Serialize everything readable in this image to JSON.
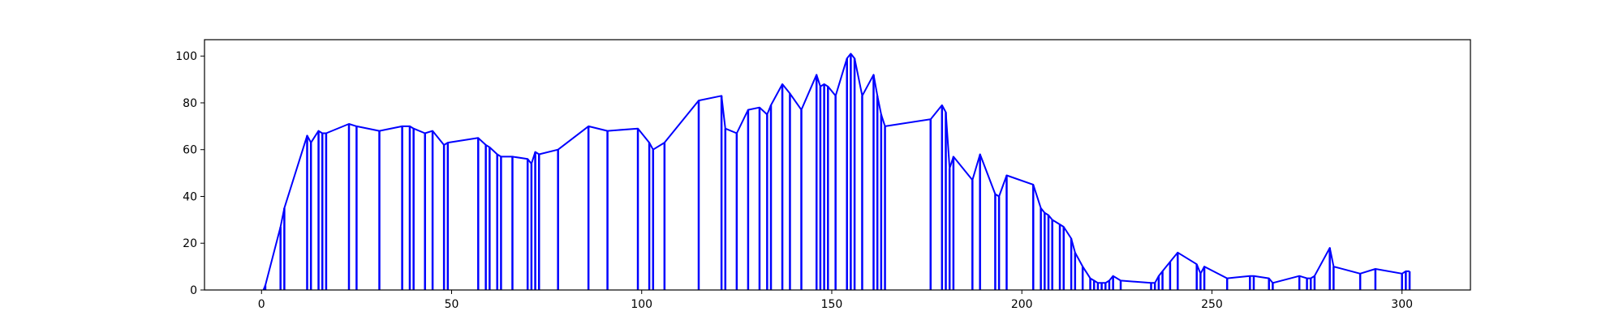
{
  "colors": {
    "series": "#0000ff",
    "axis": "#000000",
    "background": "#ffffff"
  },
  "chart_data": {
    "type": "line",
    "title": "",
    "xlabel": "",
    "ylabel": "",
    "xlim": [
      -15,
      318
    ],
    "ylim": [
      0,
      107
    ],
    "grid": false,
    "legend": "none",
    "xticks": [
      0,
      50,
      100,
      150,
      200,
      250,
      300
    ],
    "yticks": [
      0,
      20,
      40,
      60,
      80,
      100
    ],
    "x": [
      0.5,
      1,
      5,
      6,
      12,
      13,
      15,
      16,
      17,
      23,
      25,
      31,
      37,
      39,
      40,
      43,
      45,
      48,
      49,
      57,
      59,
      60,
      62,
      63,
      66,
      70,
      71,
      72,
      73,
      78,
      86,
      91,
      99,
      102,
      103,
      106,
      115,
      121,
      122,
      125,
      128,
      131,
      133,
      134,
      137,
      139,
      142,
      146,
      147,
      148,
      149,
      151,
      154,
      155,
      156,
      158,
      161,
      162,
      163,
      164,
      176,
      179,
      180,
      181,
      182,
      187,
      189,
      193,
      194,
      196,
      203,
      205,
      206,
      207,
      208,
      210,
      211,
      213,
      214,
      216,
      218,
      219,
      220,
      221,
      222,
      223,
      224,
      226,
      234,
      235,
      236,
      237,
      239,
      241,
      246,
      247,
      248,
      254,
      260,
      261,
      265,
      266,
      273,
      275,
      276,
      277,
      281,
      282,
      289,
      293,
      300,
      301,
      302
    ],
    "y": [
      0,
      2,
      27,
      35,
      66,
      63,
      68,
      67,
      67,
      71,
      70,
      68,
      70,
      70,
      69,
      67,
      68,
      62,
      63,
      65,
      62,
      61,
      58,
      57,
      57,
      56,
      54,
      59,
      58,
      60,
      70,
      68,
      69,
      63,
      60,
      63,
      81,
      83,
      69,
      67,
      77,
      78,
      75,
      79,
      88,
      84,
      77,
      92,
      87,
      88,
      87,
      83,
      99,
      101,
      99,
      83,
      92,
      83,
      75,
      70,
      73,
      79,
      76,
      52,
      57,
      47,
      58,
      41,
      40,
      49,
      45,
      35,
      33,
      32,
      30,
      28,
      27,
      22,
      16,
      10,
      5,
      4,
      3,
      3,
      3,
      4,
      6,
      4,
      3,
      3,
      6,
      8,
      12,
      16,
      11,
      7,
      10,
      5,
      6,
      6,
      5,
      3,
      6,
      5,
      5,
      6,
      18,
      10,
      7,
      9,
      7,
      8,
      8
    ],
    "stems": true
  }
}
